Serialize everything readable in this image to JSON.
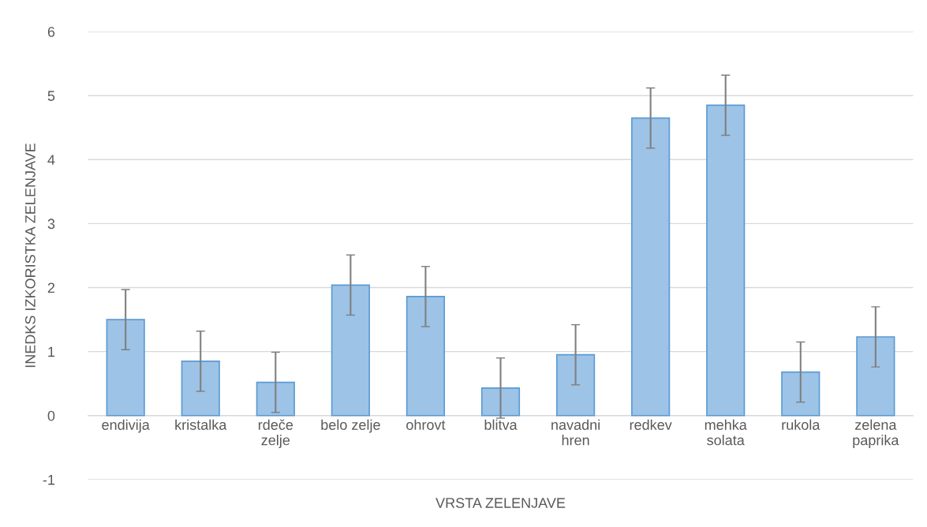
{
  "chart_data": {
    "type": "bar",
    "xlabel": "VRSTA ZELENJAVE",
    "ylabel": "INEDKS IZKORISTKA ZELENJAVE",
    "categories": [
      "endivija",
      "kristalka",
      "rdeče zelje",
      "belo zelje",
      "ohrovt",
      "blitva",
      "navadni hren",
      "redkev",
      "mehka solata",
      "rukola",
      "zelena paprika"
    ],
    "values": [
      1.5,
      0.85,
      0.52,
      2.04,
      1.86,
      0.43,
      0.95,
      4.65,
      4.85,
      0.68,
      1.23
    ],
    "errors": [
      0.47,
      0.47,
      0.47,
      0.47,
      0.47,
      0.47,
      0.47,
      0.47,
      0.47,
      0.47,
      0.47
    ],
    "color": "#9dc3e6",
    "ylim": [
      -1,
      6
    ],
    "yticks": [
      {
        "value": -1,
        "label": "-1"
      },
      0,
      1,
      2,
      3,
      4,
      5,
      6
    ],
    "grid": "y"
  }
}
